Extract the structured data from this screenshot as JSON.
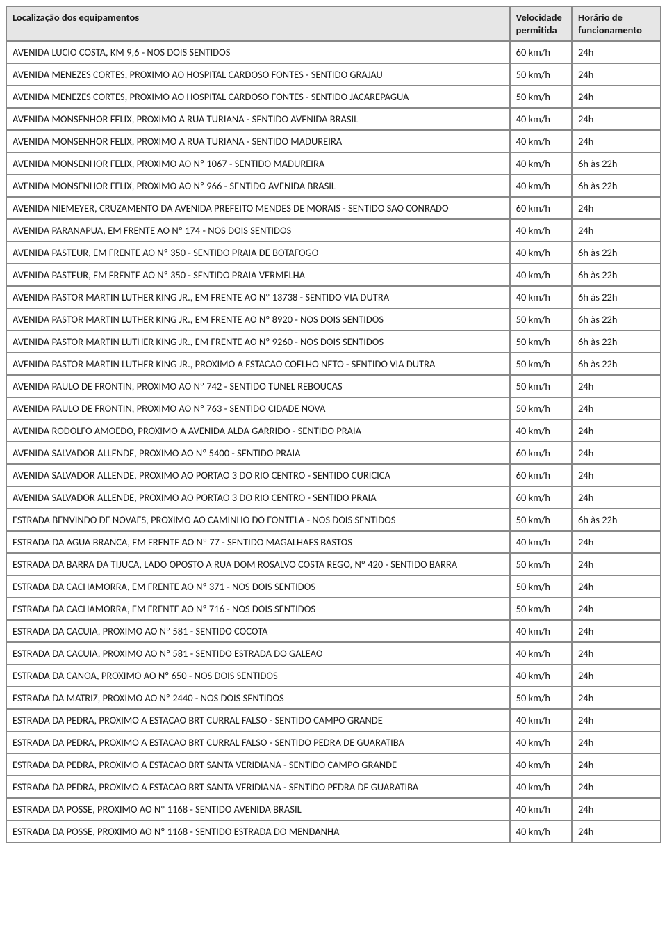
{
  "table": {
    "columns": [
      "Localização dos equipamentos",
      "Velocidade permitida",
      "Horário de funcionamento"
    ],
    "rows": [
      [
        "AVENIDA LUCIO COSTA, KM 9,6 - NOS DOIS SENTIDOS",
        "60 km/h",
        "24h"
      ],
      [
        "AVENIDA MENEZES CORTES, PROXIMO AO HOSPITAL CARDOSO FONTES - SENTIDO GRAJAU",
        "50 km/h",
        "24h"
      ],
      [
        "AVENIDA MENEZES CORTES, PROXIMO AO HOSPITAL CARDOSO FONTES - SENTIDO JACAREPAGUA",
        "50 km/h",
        "24h"
      ],
      [
        "AVENIDA MONSENHOR FELIX, PROXIMO A RUA TURIANA - SENTIDO AVENIDA BRASIL",
        "40 km/h",
        "24h"
      ],
      [
        "AVENIDA MONSENHOR FELIX, PROXIMO A RUA TURIANA - SENTIDO MADUREIRA",
        "40 km/h",
        "24h"
      ],
      [
        "AVENIDA MONSENHOR FELIX, PROXIMO AO Nº 1067 - SENTIDO MADUREIRA",
        "40 km/h",
        "6h às 22h"
      ],
      [
        "AVENIDA MONSENHOR FELIX, PROXIMO AO Nº 966 - SENTIDO AVENIDA BRASIL",
        "40 km/h",
        "6h às 22h"
      ],
      [
        "AVENIDA NIEMEYER, CRUZAMENTO DA AVENIDA PREFEITO MENDES DE MORAIS - SENTIDO SAO CONRADO",
        "60 km/h",
        "24h"
      ],
      [
        "AVENIDA PARANAPUA, EM FRENTE AO Nº 174 - NOS DOIS SENTIDOS",
        "40 km/h",
        "24h"
      ],
      [
        "AVENIDA PASTEUR, EM FRENTE AO Nº 350 - SENTIDO PRAIA DE BOTAFOGO",
        "40 km/h",
        "6h às 22h"
      ],
      [
        "AVENIDA PASTEUR, EM FRENTE AO Nº 350 - SENTIDO PRAIA VERMELHA",
        "40 km/h",
        "6h às 22h"
      ],
      [
        "AVENIDA PASTOR MARTIN LUTHER KING JR., EM FRENTE AO Nº 13738 - SENTIDO VIA DUTRA",
        "40 km/h",
        "6h às 22h"
      ],
      [
        "AVENIDA PASTOR MARTIN LUTHER KING JR., EM FRENTE AO Nº 8920 - NOS DOIS SENTIDOS",
        "50 km/h",
        "6h às 22h"
      ],
      [
        "AVENIDA PASTOR MARTIN LUTHER KING JR., EM FRENTE AO Nº 9260 - NOS DOIS SENTIDOS",
        "50 km/h",
        "6h às 22h"
      ],
      [
        "AVENIDA PASTOR MARTIN LUTHER KING JR., PROXIMO A ESTACAO COELHO NETO - SENTIDO VIA DUTRA",
        "50 km/h",
        "6h às 22h"
      ],
      [
        "AVENIDA PAULO DE FRONTIN, PROXIMO AO Nº 742 - SENTIDO TUNEL REBOUCAS",
        "50 km/h",
        "24h"
      ],
      [
        "AVENIDA PAULO DE FRONTIN, PROXIMO AO Nº 763 - SENTIDO CIDADE NOVA",
        "50 km/h",
        "24h"
      ],
      [
        "AVENIDA RODOLFO AMOEDO, PROXIMO A AVENIDA ALDA GARRIDO - SENTIDO PRAIA",
        "40 km/h",
        "24h"
      ],
      [
        "AVENIDA SALVADOR ALLENDE, PROXIMO AO Nº 5400 - SENTIDO PRAIA",
        "60 km/h",
        "24h"
      ],
      [
        "AVENIDA SALVADOR ALLENDE, PROXIMO AO PORTAO 3 DO RIO CENTRO - SENTIDO CURICICA",
        "60 km/h",
        "24h"
      ],
      [
        "AVENIDA SALVADOR ALLENDE, PROXIMO AO PORTAO 3 DO RIO CENTRO - SENTIDO PRAIA",
        "60 km/h",
        "24h"
      ],
      [
        "ESTRADA BENVINDO DE NOVAES, PROXIMO AO CAMINHO DO FONTELA - NOS DOIS SENTIDOS",
        "50 km/h",
        "6h às 22h"
      ],
      [
        "ESTRADA DA AGUA BRANCA, EM FRENTE AO Nº 77 - SENTIDO MAGALHAES BASTOS",
        "40 km/h",
        "24h"
      ],
      [
        "ESTRADA DA BARRA DA TIJUCA, LADO OPOSTO A RUA DOM ROSALVO COSTA REGO, Nº 420 - SENTIDO BARRA",
        "50 km/h",
        "24h"
      ],
      [
        "ESTRADA DA CACHAMORRA, EM FRENTE AO Nº 371 - NOS DOIS SENTIDOS",
        "50 km/h",
        "24h"
      ],
      [
        "ESTRADA DA CACHAMORRA, EM FRENTE AO Nº 716 - NOS DOIS SENTIDOS",
        "50 km/h",
        "24h"
      ],
      [
        "ESTRADA DA CACUIA, PROXIMO AO Nº 581 - SENTIDO COCOTA",
        "40 km/h",
        "24h"
      ],
      [
        "ESTRADA DA CACUIA, PROXIMO AO Nº 581 - SENTIDO ESTRADA DO GALEAO",
        "40 km/h",
        "24h"
      ],
      [
        "ESTRADA DA CANOA, PROXIMO AO Nº 650 - NOS DOIS SENTIDOS",
        "40 km/h",
        "24h"
      ],
      [
        "ESTRADA DA MATRIZ, PROXIMO AO Nº 2440 - NOS DOIS SENTIDOS",
        "50 km/h",
        "24h"
      ],
      [
        "ESTRADA DA PEDRA, PROXIMO A ESTACAO BRT CURRAL FALSO - SENTIDO CAMPO GRANDE",
        "40 km/h",
        "24h"
      ],
      [
        "ESTRADA DA PEDRA, PROXIMO A ESTACAO BRT CURRAL FALSO - SENTIDO PEDRA DE GUARATIBA",
        "40 km/h",
        "24h"
      ],
      [
        "ESTRADA DA PEDRA, PROXIMO A ESTACAO BRT SANTA VERIDIANA - SENTIDO CAMPO GRANDE",
        "40 km/h",
        "24h"
      ],
      [
        "ESTRADA DA PEDRA, PROXIMO A ESTACAO BRT SANTA VERIDIANA - SENTIDO PEDRA DE GUARATIBA",
        "40 km/h",
        "24h"
      ],
      [
        "ESTRADA DA POSSE, PROXIMO AO Nº 1168 - SENTIDO AVENIDA BRASIL",
        "40 km/h",
        "24h"
      ],
      [
        "ESTRADA DA POSSE, PROXIMO AO Nº 1168 - SENTIDO ESTRADA DO MENDANHA",
        "40 km/h",
        "24h"
      ]
    ]
  }
}
